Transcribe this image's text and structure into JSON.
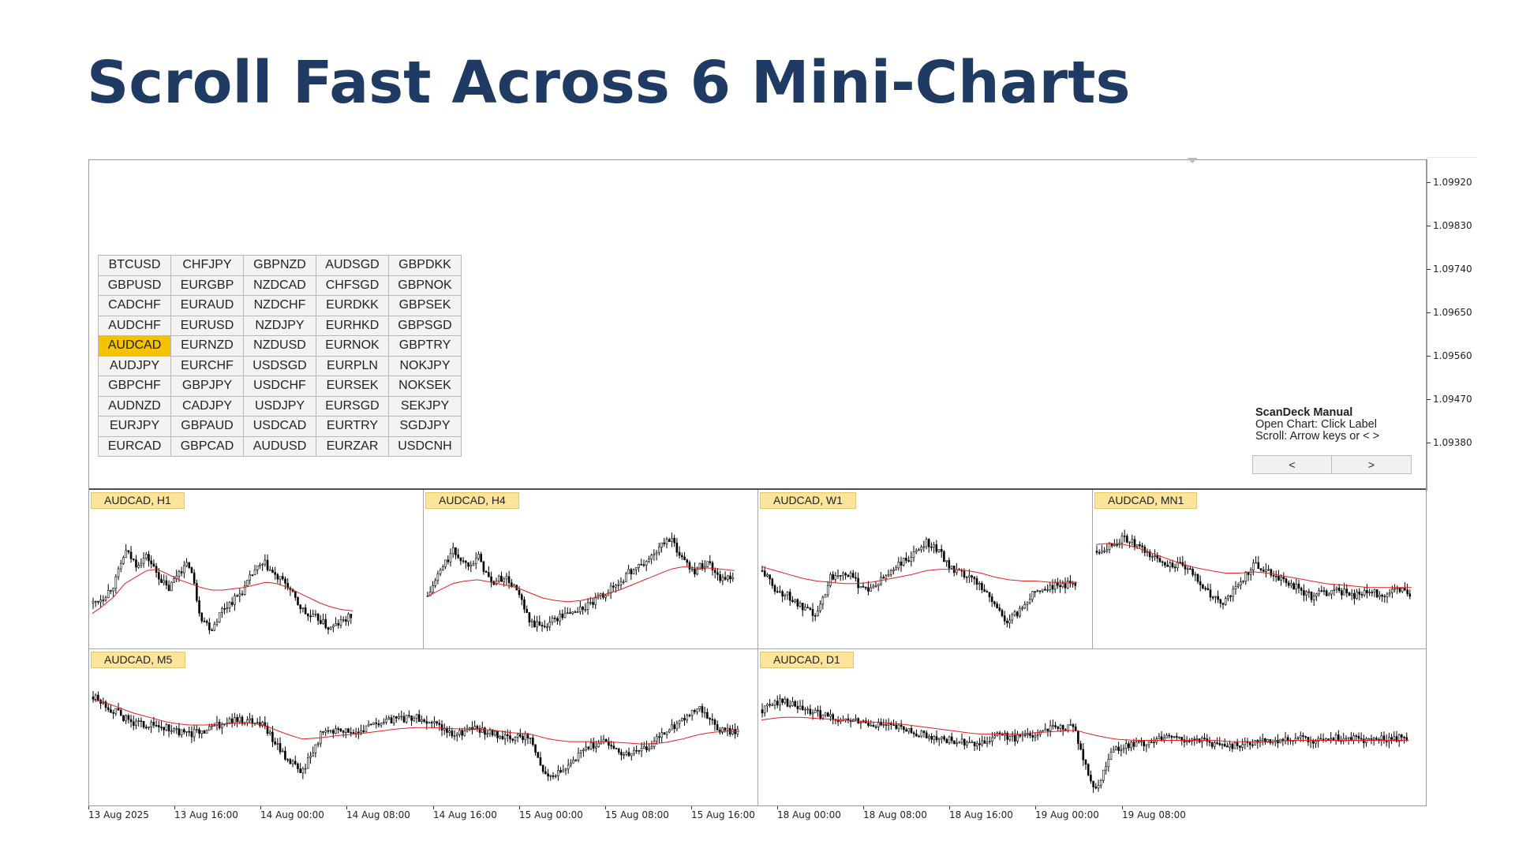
{
  "headline": "Scroll Fast Across 6 Mini-Charts",
  "price_axis": [
    "1.09920",
    "1.09830",
    "1.09740",
    "1.09650",
    "1.09560",
    "1.09470",
    "1.09380"
  ],
  "symbol_grid": {
    "selected": "AUDCAD",
    "rows": [
      [
        "BTCUSD",
        "CHFJPY",
        "GBPNZD",
        "AUDSGD",
        "GBPDKK"
      ],
      [
        "GBPUSD",
        "EURGBP",
        "NZDCAD",
        "CHFSGD",
        "GBPNOK"
      ],
      [
        "CADCHF",
        "EURAUD",
        "NZDCHF",
        "EURDKK",
        "GBPSEK"
      ],
      [
        "AUDCHF",
        "EURUSD",
        "NZDJPY",
        "EURHKD",
        "GBPSGD"
      ],
      [
        "AUDCAD",
        "EURNZD",
        "NZDUSD",
        "EURNOK",
        "GBPTRY"
      ],
      [
        "AUDJPY",
        "EURCHF",
        "USDSGD",
        "EURPLN",
        "NOKJPY"
      ],
      [
        "GBPCHF",
        "GBPJPY",
        "USDCHF",
        "EURSEK",
        "NOKSEK"
      ],
      [
        "AUDNZD",
        "CADJPY",
        "USDJPY",
        "EURSGD",
        "SEKJPY"
      ],
      [
        "EURJPY",
        "GBPAUD",
        "USDCAD",
        "EURTRY",
        "SGDJPY"
      ],
      [
        "EURCAD",
        "GBPCAD",
        "AUDUSD",
        "EURZAR",
        "USDCNH"
      ]
    ]
  },
  "manual": {
    "title": "ScanDeck Manual",
    "line1": "Open Chart: Click Label",
    "line2": "Scroll: Arrow keys or < >",
    "prev_label": "<",
    "next_label": ">"
  },
  "panels": [
    {
      "label": "AUDCAD, H1"
    },
    {
      "label": "AUDCAD, H4"
    },
    {
      "label": "AUDCAD, W1"
    },
    {
      "label": "AUDCAD, MN1"
    },
    {
      "label": "AUDCAD, M5"
    },
    {
      "label": "AUDCAD, D1"
    }
  ],
  "time_axis": [
    "13 Aug 2025",
    "13 Aug 16:00",
    "14 Aug 00:00",
    "14 Aug 08:00",
    "14 Aug 16:00",
    "15 Aug 00:00",
    "15 Aug 08:00",
    "15 Aug 16:00",
    "18 Aug 00:00",
    "18 Aug 08:00",
    "18 Aug 16:00",
    "19 Aug 00:00",
    "19 Aug 08:00"
  ],
  "colors": {
    "headline": "#1f3a63",
    "selected_cell": "#f5c200",
    "panel_label_bg": "#fce49a",
    "moving_average": "#e02020",
    "candles": "#000000"
  },
  "chart_data": [
    {
      "type": "line",
      "title": "AUDCAD, H1",
      "series": [
        {
          "values": [
            0.3,
            0.35,
            0.45,
            0.7,
            0.6,
            0.66,
            0.52,
            0.4,
            0.55,
            0.6,
            0.2,
            0.1,
            0.25,
            0.32,
            0.4,
            0.55,
            0.6,
            0.5,
            0.45,
            0.3,
            0.2,
            0.18,
            0.1,
            0.15,
            0.2
          ]
        },
        {
          "values": [
            0.22,
            0.28,
            0.35,
            0.45,
            0.5,
            0.55,
            0.56,
            0.52,
            0.48,
            0.45,
            0.42,
            0.4,
            0.4,
            0.41,
            0.42,
            0.44,
            0.46,
            0.45,
            0.42,
            0.38,
            0.34,
            0.3,
            0.27,
            0.25,
            0.24
          ]
        }
      ]
    },
    {
      "type": "line",
      "title": "AUDCAD, H4",
      "series": [
        {
          "values": [
            0.35,
            0.55,
            0.7,
            0.6,
            0.65,
            0.45,
            0.5,
            0.4,
            0.15,
            0.12,
            0.18,
            0.22,
            0.25,
            0.3,
            0.38,
            0.45,
            0.55,
            0.6,
            0.7,
            0.8,
            0.65,
            0.55,
            0.62,
            0.5,
            0.48
          ]
        },
        {
          "values": [
            0.35,
            0.4,
            0.45,
            0.47,
            0.48,
            0.46,
            0.44,
            0.42,
            0.38,
            0.34,
            0.32,
            0.31,
            0.32,
            0.34,
            0.37,
            0.4,
            0.44,
            0.48,
            0.52,
            0.56,
            0.58,
            0.57,
            0.57,
            0.56,
            0.55
          ]
        }
      ]
    },
    {
      "type": "line",
      "title": "AUDCAD, W1",
      "series": [
        {
          "values": [
            0.55,
            0.4,
            0.35,
            0.25,
            0.2,
            0.5,
            0.55,
            0.45,
            0.4,
            0.5,
            0.6,
            0.65,
            0.78,
            0.7,
            0.55,
            0.5,
            0.45,
            0.3,
            0.15,
            0.25,
            0.4,
            0.42,
            0.44,
            0.45
          ]
        },
        {
          "values": [
            0.58,
            0.55,
            0.52,
            0.49,
            0.47,
            0.46,
            0.45,
            0.45,
            0.46,
            0.48,
            0.5,
            0.52,
            0.55,
            0.56,
            0.56,
            0.55,
            0.53,
            0.5,
            0.48,
            0.47,
            0.47,
            0.46,
            0.46,
            0.46
          ]
        }
      ]
    },
    {
      "type": "line",
      "title": "AUDCAD, MN1",
      "series": [
        {
          "values": [
            0.7,
            0.75,
            0.8,
            0.72,
            0.65,
            0.6,
            0.58,
            0.5,
            0.35,
            0.3,
            0.45,
            0.6,
            0.55,
            0.48,
            0.42,
            0.35,
            0.38,
            0.4,
            0.36,
            0.38,
            0.37,
            0.4,
            0.38
          ]
        },
        {
          "values": [
            0.75,
            0.76,
            0.75,
            0.72,
            0.68,
            0.64,
            0.6,
            0.57,
            0.55,
            0.53,
            0.53,
            0.54,
            0.53,
            0.51,
            0.49,
            0.47,
            0.45,
            0.44,
            0.43,
            0.42,
            0.42,
            0.42,
            0.42
          ]
        }
      ]
    },
    {
      "type": "line",
      "title": "AUDCAD, M5",
      "series": [
        {
          "values": [
            0.8,
            0.7,
            0.6,
            0.58,
            0.55,
            0.5,
            0.55,
            0.6,
            0.62,
            0.58,
            0.35,
            0.2,
            0.5,
            0.55,
            0.52,
            0.6,
            0.62,
            0.65,
            0.58,
            0.5,
            0.55,
            0.52,
            0.48,
            0.5,
            0.15,
            0.25,
            0.4,
            0.45,
            0.35,
            0.38,
            0.5,
            0.62,
            0.7,
            0.55,
            0.52
          ]
        },
        {
          "values": [
            0.78,
            0.74,
            0.68,
            0.64,
            0.6,
            0.58,
            0.58,
            0.59,
            0.6,
            0.58,
            0.52,
            0.47,
            0.48,
            0.5,
            0.51,
            0.53,
            0.55,
            0.56,
            0.56,
            0.55,
            0.55,
            0.54,
            0.52,
            0.51,
            0.47,
            0.45,
            0.45,
            0.45,
            0.44,
            0.43,
            0.44,
            0.47,
            0.51,
            0.53,
            0.53
          ]
        }
      ]
    },
    {
      "type": "line",
      "title": "AUDCAD, D1",
      "series": [
        {
          "values": [
            0.7,
            0.78,
            0.7,
            0.66,
            0.62,
            0.6,
            0.58,
            0.55,
            0.52,
            0.48,
            0.45,
            0.42,
            0.5,
            0.48,
            0.52,
            0.58,
            0.55,
            0.05,
            0.4,
            0.42,
            0.45,
            0.48,
            0.46,
            0.44,
            0.42,
            0.45,
            0.46,
            0.48,
            0.46,
            0.48,
            0.47,
            0.46,
            0.47,
            0.48
          ]
        },
        {
          "values": [
            0.62,
            0.64,
            0.64,
            0.63,
            0.62,
            0.61,
            0.6,
            0.59,
            0.57,
            0.55,
            0.53,
            0.51,
            0.51,
            0.51,
            0.52,
            0.53,
            0.54,
            0.5,
            0.47,
            0.46,
            0.46,
            0.46,
            0.46,
            0.46,
            0.45,
            0.45,
            0.45,
            0.46,
            0.46,
            0.46,
            0.46,
            0.46,
            0.46,
            0.46
          ]
        }
      ]
    }
  ]
}
